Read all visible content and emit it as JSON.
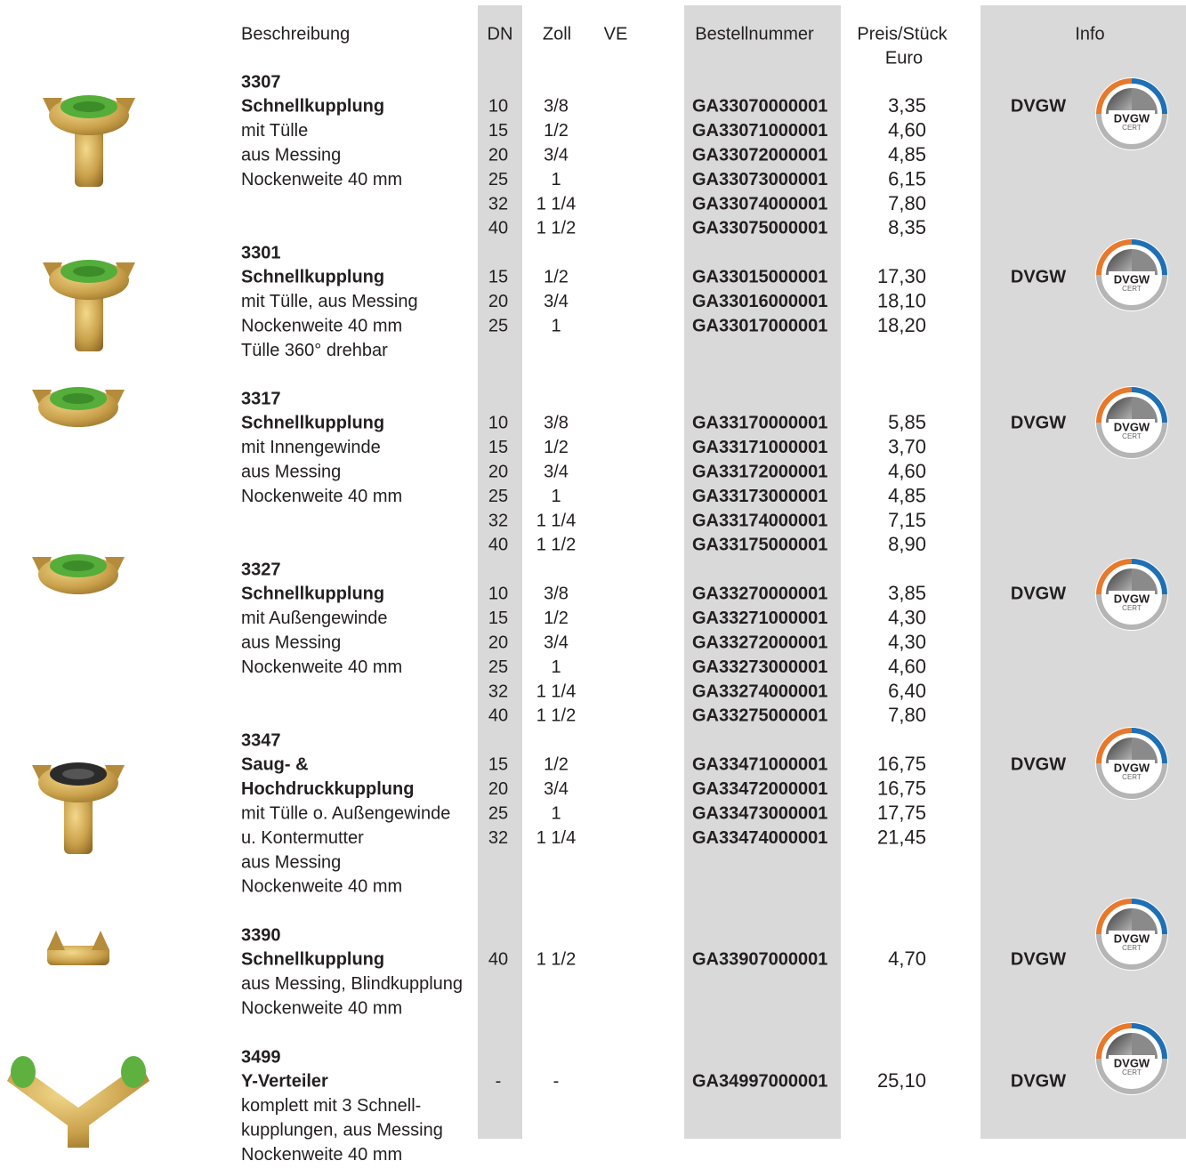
{
  "header": {
    "description": "Beschreibung",
    "dn": "DN",
    "zoll": "Zoll",
    "ve": "VE",
    "order": "Bestellnummer",
    "price": "Preis/Stück",
    "price_unit": "Euro",
    "info": "Info"
  },
  "logo": {
    "title": "DVGW",
    "sub": "CERT"
  },
  "products": [
    {
      "code": "3307",
      "name": [
        "Schnellkupplung"
      ],
      "desc": [
        "mit Tülle",
        "aus Messing",
        "Nockenweite 40 mm"
      ],
      "rows": [
        [
          "10",
          "3/8",
          "GA33070000001",
          "3,35"
        ],
        [
          "15",
          "1/2",
          "GA33071000001",
          "4,60"
        ],
        [
          "20",
          "3/4",
          "GA33072000001",
          "4,85"
        ],
        [
          "25",
          "1",
          "GA33073000001",
          "6,15"
        ],
        [
          "32",
          "1 1/4",
          "GA33074000001",
          "7,80"
        ],
        [
          "40",
          "1 1/2",
          "GA33075000001",
          "8,35"
        ]
      ],
      "info": "DVGW"
    },
    {
      "code": "3301",
      "name": [
        "Schnellkupplung"
      ],
      "desc": [
        "mit Tülle, aus Messing",
        "Nockenweite 40 mm",
        "Tülle 360° drehbar"
      ],
      "rows": [
        [
          "15",
          "1/2",
          "GA33015000001",
          "17,30"
        ],
        [
          "20",
          "3/4",
          "GA33016000001",
          "18,10"
        ],
        [
          "25",
          "1",
          "GA33017000001",
          "18,20"
        ]
      ],
      "info": "DVGW"
    },
    {
      "code": "3317",
      "name": [
        "Schnellkupplung"
      ],
      "desc": [
        "mit Innengewinde",
        "aus Messing",
        "Nockenweite 40 mm"
      ],
      "rows": [
        [
          "10",
          "3/8",
          "GA33170000001",
          "5,85"
        ],
        [
          "15",
          "1/2",
          "GA33171000001",
          "3,70"
        ],
        [
          "20",
          "3/4",
          "GA33172000001",
          "4,60"
        ],
        [
          "25",
          "1",
          "GA33173000001",
          "4,85"
        ],
        [
          "32",
          "1 1/4",
          "GA33174000001",
          "7,15"
        ],
        [
          "40",
          "1 1/2",
          "GA33175000001",
          "8,90"
        ]
      ],
      "info": "DVGW"
    },
    {
      "code": "3327",
      "name": [
        "Schnellkupplung"
      ],
      "desc": [
        "mit Außengewinde",
        "aus Messing",
        "Nockenweite 40 mm"
      ],
      "rows": [
        [
          "10",
          "3/8",
          "GA33270000001",
          "3,85"
        ],
        [
          "15",
          "1/2",
          "GA33271000001",
          "4,30"
        ],
        [
          "20",
          "3/4",
          "GA33272000001",
          "4,30"
        ],
        [
          "25",
          "1",
          "GA33273000001",
          "4,60"
        ],
        [
          "32",
          "1 1/4",
          "GA33274000001",
          "6,40"
        ],
        [
          "40",
          "1 1/2",
          "GA33275000001",
          "7,80"
        ]
      ],
      "info": "DVGW"
    },
    {
      "code": "3347",
      "name": [
        "Saug- &",
        "Hochdruckkupplung"
      ],
      "desc": [
        "mit Tülle o. Außengewinde",
        "u. Kontermutter",
        "aus Messing",
        "Nockenweite 40 mm"
      ],
      "rows": [
        [
          "15",
          "1/2",
          "GA33471000001",
          "16,75"
        ],
        [
          "20",
          "3/4",
          "GA33472000001",
          "16,75"
        ],
        [
          "25",
          "1",
          "GA33473000001",
          "17,75"
        ],
        [
          "32",
          "1 1/4",
          "GA33474000001",
          "21,45"
        ]
      ],
      "info": "DVGW"
    },
    {
      "code": "3390",
      "name": [
        "Schnellkupplung"
      ],
      "desc": [
        "aus Messing, Blindkupplung",
        "Nockenweite 40 mm"
      ],
      "rows": [
        [
          "40",
          "1 1/2",
          "GA33907000001",
          "4,70"
        ]
      ],
      "info": "DVGW"
    },
    {
      "code": "3499",
      "name": [
        "Y-Verteiler"
      ],
      "desc": [
        "komplett mit 3 Schnell-",
        "kupplungen, aus Messing",
        "Nockenweite 40 mm"
      ],
      "rows": [
        [
          "-",
          "-",
          "GA34997000001",
          "25,10"
        ]
      ],
      "info": "DVGW"
    }
  ]
}
